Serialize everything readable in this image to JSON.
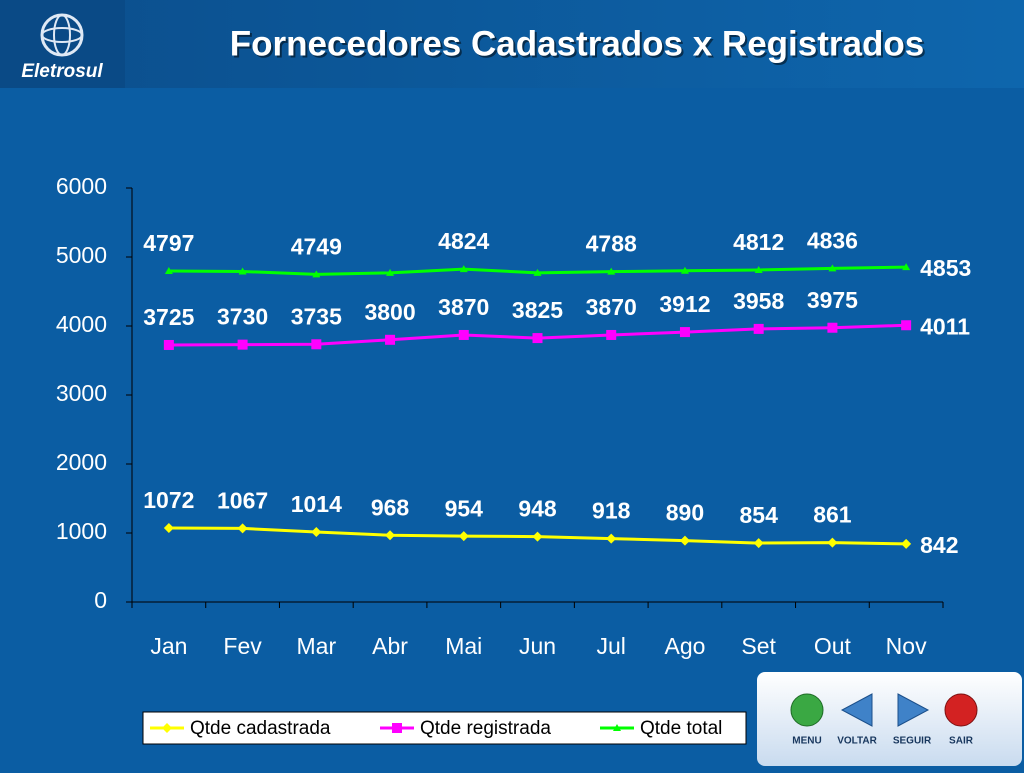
{
  "header": {
    "logo_text": "Eletrosul",
    "title": "Fornecedores Cadastrados x Registrados"
  },
  "chart_data": {
    "type": "line",
    "categories": [
      "Jan",
      "Fev",
      "Mar",
      "Abr",
      "Mai",
      "Jun",
      "Jul",
      "Ago",
      "Set",
      "Out",
      "Nov"
    ],
    "series": [
      {
        "name": "Qtde cadastrada",
        "color": "#ffff00",
        "marker": "diamond",
        "values": [
          1072,
          1067,
          1014,
          968,
          954,
          948,
          918,
          890,
          854,
          861,
          842
        ]
      },
      {
        "name": "Qtde registrada",
        "color": "#ff00ff",
        "marker": "square",
        "values": [
          3725,
          3730,
          3735,
          3800,
          3870,
          3825,
          3870,
          3912,
          3958,
          3975,
          4011
        ]
      },
      {
        "name": "Qtde total",
        "color": "#00ff00",
        "marker": "triangle",
        "values": [
          4797,
          4790,
          4749,
          4770,
          4824,
          4770,
          4788,
          4800,
          4812,
          4836,
          4853
        ],
        "value_labels": [
          "4797",
          null,
          "4749",
          null,
          "4824",
          null,
          "4788",
          null,
          "4812",
          "4836",
          "4853"
        ]
      }
    ],
    "ylim": [
      0,
      6000
    ],
    "yticks": [
      0,
      1000,
      2000,
      3000,
      4000,
      5000,
      6000
    ],
    "grid": false,
    "legend": "bottom"
  },
  "nav": [
    "MENU",
    "VOLTAR",
    "SEGUIR",
    "SAIR"
  ]
}
